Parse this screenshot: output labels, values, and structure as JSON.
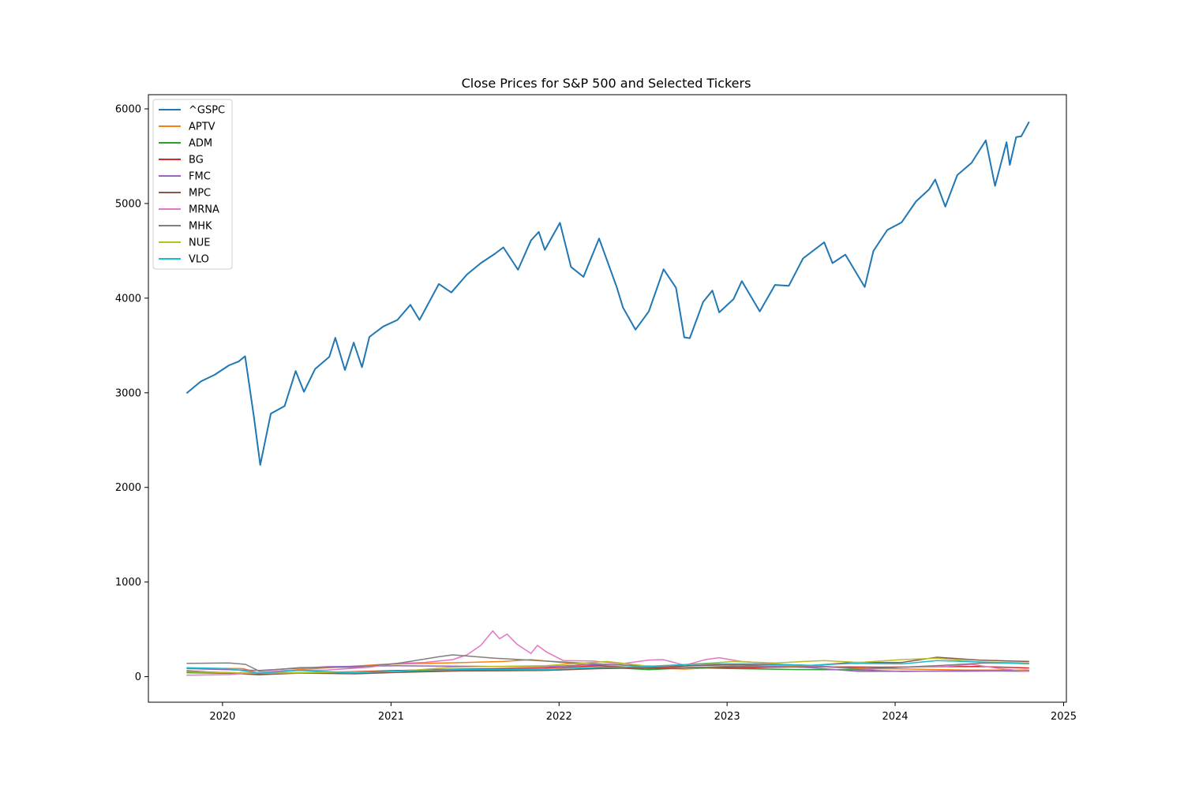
{
  "chart_data": {
    "type": "line",
    "title": "Close Prices for S&P 500 and Selected Tickers",
    "xlabel": "",
    "ylabel": "",
    "x_ticks": [
      "2020",
      "2021",
      "2022",
      "2023",
      "2024",
      "2025"
    ],
    "y_ticks": [
      "0",
      "1000",
      "2000",
      "3000",
      "4000",
      "5000",
      "6000"
    ],
    "xlim": [
      "2019-07-24",
      "2025-01-07"
    ],
    "ylim": [
      -270,
      6150
    ],
    "legend_position": "top-left",
    "grid": false,
    "series": [
      {
        "name": "^GSPC",
        "color": "#1f77b4",
        "points": [
          [
            "2019-10-15",
            2995
          ],
          [
            "2019-11-15",
            3120
          ],
          [
            "2019-12-15",
            3190
          ],
          [
            "2020-01-15",
            3290
          ],
          [
            "2020-02-05",
            3330
          ],
          [
            "2020-02-19",
            3386
          ],
          [
            "2020-03-09",
            2750
          ],
          [
            "2020-03-23",
            2237
          ],
          [
            "2020-04-15",
            2780
          ],
          [
            "2020-05-15",
            2860
          ],
          [
            "2020-06-08",
            3230
          ],
          [
            "2020-06-26",
            3010
          ],
          [
            "2020-07-20",
            3250
          ],
          [
            "2020-08-20",
            3380
          ],
          [
            "2020-09-02",
            3580
          ],
          [
            "2020-09-23",
            3240
          ],
          [
            "2020-10-12",
            3530
          ],
          [
            "2020-10-30",
            3270
          ],
          [
            "2020-11-15",
            3590
          ],
          [
            "2020-12-15",
            3700
          ],
          [
            "2021-01-15",
            3770
          ],
          [
            "2021-02-12",
            3930
          ],
          [
            "2021-03-04",
            3770
          ],
          [
            "2021-04-15",
            4150
          ],
          [
            "2021-05-12",
            4060
          ],
          [
            "2021-06-15",
            4250
          ],
          [
            "2021-07-15",
            4370
          ],
          [
            "2021-08-15",
            4470
          ],
          [
            "2021-09-02",
            4537
          ],
          [
            "2021-10-04",
            4300
          ],
          [
            "2021-11-01",
            4610
          ],
          [
            "2021-11-18",
            4700
          ],
          [
            "2021-12-01",
            4510
          ],
          [
            "2022-01-03",
            4796
          ],
          [
            "2022-01-27",
            4330
          ],
          [
            "2022-02-23",
            4225
          ],
          [
            "2022-03-29",
            4630
          ],
          [
            "2022-05-06",
            4120
          ],
          [
            "2022-05-20",
            3900
          ],
          [
            "2022-06-16",
            3667
          ],
          [
            "2022-07-15",
            3860
          ],
          [
            "2022-08-16",
            4305
          ],
          [
            "2022-09-12",
            4110
          ],
          [
            "2022-09-30",
            3585
          ],
          [
            "2022-10-12",
            3577
          ],
          [
            "2022-11-10",
            3960
          ],
          [
            "2022-11-30",
            4080
          ],
          [
            "2022-12-15",
            3850
          ],
          [
            "2023-01-15",
            3990
          ],
          [
            "2023-02-02",
            4180
          ],
          [
            "2023-03-13",
            3860
          ],
          [
            "2023-04-15",
            4140
          ],
          [
            "2023-05-15",
            4130
          ],
          [
            "2023-06-15",
            4420
          ],
          [
            "2023-07-31",
            4590
          ],
          [
            "2023-08-18",
            4370
          ],
          [
            "2023-09-15",
            4460
          ],
          [
            "2023-10-27",
            4117
          ],
          [
            "2023-11-15",
            4500
          ],
          [
            "2023-12-15",
            4720
          ],
          [
            "2024-01-15",
            4800
          ],
          [
            "2024-02-15",
            5020
          ],
          [
            "2024-03-15",
            5150
          ],
          [
            "2024-03-28",
            5254
          ],
          [
            "2024-04-19",
            4967
          ],
          [
            "2024-05-15",
            5300
          ],
          [
            "2024-06-15",
            5430
          ],
          [
            "2024-07-16",
            5667
          ],
          [
            "2024-08-05",
            5186
          ],
          [
            "2024-08-30",
            5648
          ],
          [
            "2024-09-06",
            5408
          ],
          [
            "2024-09-20",
            5702
          ],
          [
            "2024-10-01",
            5710
          ],
          [
            "2024-10-18",
            5864
          ]
        ]
      },
      {
        "name": "APTV",
        "color": "#ff7f0e",
        "points": [
          [
            "2019-10-15",
            88
          ],
          [
            "2020-02-15",
            85
          ],
          [
            "2020-03-20",
            35
          ],
          [
            "2020-06-15",
            75
          ],
          [
            "2020-12-15",
            130
          ],
          [
            "2021-06-15",
            150
          ],
          [
            "2021-09-01",
            160
          ],
          [
            "2021-11-01",
            180
          ],
          [
            "2022-03-01",
            125
          ],
          [
            "2022-07-01",
            95
          ],
          [
            "2022-10-01",
            80
          ],
          [
            "2023-01-15",
            105
          ],
          [
            "2023-04-01",
            110
          ],
          [
            "2023-07-31",
            105
          ],
          [
            "2023-11-01",
            85
          ],
          [
            "2024-02-01",
            80
          ],
          [
            "2024-06-01",
            70
          ],
          [
            "2024-10-18",
            70
          ]
        ]
      },
      {
        "name": "ADM",
        "color": "#2ca02c",
        "points": [
          [
            "2019-10-15",
            42
          ],
          [
            "2020-03-20",
            31
          ],
          [
            "2020-08-15",
            45
          ],
          [
            "2021-01-15",
            50
          ],
          [
            "2021-06-01",
            65
          ],
          [
            "2021-12-01",
            68
          ],
          [
            "2022-03-01",
            85
          ],
          [
            "2022-04-20",
            98
          ],
          [
            "2022-07-15",
            74
          ],
          [
            "2022-10-15",
            95
          ],
          [
            "2023-01-15",
            85
          ],
          [
            "2023-06-01",
            75
          ],
          [
            "2023-10-01",
            73
          ],
          [
            "2024-01-15",
            55
          ],
          [
            "2024-06-01",
            62
          ],
          [
            "2024-10-18",
            58
          ]
        ]
      },
      {
        "name": "BG",
        "color": "#d62728",
        "points": [
          [
            "2019-10-15",
            54
          ],
          [
            "2020-03-20",
            34
          ],
          [
            "2020-08-15",
            45
          ],
          [
            "2021-01-15",
            65
          ],
          [
            "2021-06-01",
            80
          ],
          [
            "2021-12-01",
            90
          ],
          [
            "2022-04-01",
            115
          ],
          [
            "2022-07-15",
            88
          ],
          [
            "2022-11-01",
            100
          ],
          [
            "2023-03-01",
            95
          ],
          [
            "2023-07-01",
            105
          ],
          [
            "2023-12-01",
            100
          ],
          [
            "2024-04-01",
            105
          ],
          [
            "2024-07-01",
            108
          ],
          [
            "2024-10-18",
            92
          ]
        ]
      },
      {
        "name": "FMC",
        "color": "#9467bd",
        "points": [
          [
            "2019-10-15",
            85
          ],
          [
            "2020-03-20",
            65
          ],
          [
            "2020-08-15",
            105
          ],
          [
            "2021-01-15",
            115
          ],
          [
            "2021-06-01",
            110
          ],
          [
            "2021-12-01",
            105
          ],
          [
            "2022-04-01",
            130
          ],
          [
            "2022-08-01",
            110
          ],
          [
            "2023-01-15",
            125
          ],
          [
            "2023-07-01",
            95
          ],
          [
            "2023-10-15",
            55
          ],
          [
            "2024-02-01",
            58
          ],
          [
            "2024-06-01",
            58
          ],
          [
            "2024-10-18",
            65
          ]
        ]
      },
      {
        "name": "MPC",
        "color": "#8c564b",
        "points": [
          [
            "2019-10-15",
            63
          ],
          [
            "2020-03-20",
            20
          ],
          [
            "2020-06-15",
            38
          ],
          [
            "2020-10-15",
            30
          ],
          [
            "2021-01-15",
            45
          ],
          [
            "2021-06-01",
            60
          ],
          [
            "2021-12-01",
            65
          ],
          [
            "2022-04-01",
            85
          ],
          [
            "2022-07-01",
            92
          ],
          [
            "2022-11-01",
            120
          ],
          [
            "2023-03-01",
            130
          ],
          [
            "2023-07-01",
            118
          ],
          [
            "2023-10-01",
            150
          ],
          [
            "2024-01-15",
            150
          ],
          [
            "2024-04-01",
            205
          ],
          [
            "2024-07-01",
            175
          ],
          [
            "2024-10-18",
            160
          ]
        ]
      },
      {
        "name": "MRNA",
        "color": "#e377c2",
        "points": [
          [
            "2019-10-15",
            15
          ],
          [
            "2020-01-15",
            22
          ],
          [
            "2020-05-15",
            65
          ],
          [
            "2020-08-15",
            70
          ],
          [
            "2020-11-15",
            100
          ],
          [
            "2021-01-15",
            140
          ],
          [
            "2021-03-15",
            150
          ],
          [
            "2021-05-15",
            180
          ],
          [
            "2021-06-15",
            230
          ],
          [
            "2021-07-15",
            330
          ],
          [
            "2021-08-10",
            484
          ],
          [
            "2021-08-25",
            400
          ],
          [
            "2021-09-10",
            450
          ],
          [
            "2021-10-01",
            345
          ],
          [
            "2021-10-15",
            300
          ],
          [
            "2021-11-01",
            245
          ],
          [
            "2021-11-15",
            330
          ],
          [
            "2021-12-05",
            260
          ],
          [
            "2022-01-10",
            170
          ],
          [
            "2022-03-15",
            165
          ],
          [
            "2022-05-15",
            135
          ],
          [
            "2022-07-15",
            175
          ],
          [
            "2022-08-15",
            180
          ],
          [
            "2022-10-01",
            120
          ],
          [
            "2022-11-15",
            180
          ],
          [
            "2022-12-15",
            200
          ],
          [
            "2023-02-01",
            160
          ],
          [
            "2023-05-01",
            130
          ],
          [
            "2023-08-01",
            110
          ],
          [
            "2023-11-01",
            75
          ],
          [
            "2024-01-15",
            100
          ],
          [
            "2024-04-15",
            105
          ],
          [
            "2024-06-15",
            130
          ],
          [
            "2024-08-15",
            85
          ],
          [
            "2024-10-18",
            55
          ]
        ]
      },
      {
        "name": "MHK",
        "color": "#7f7f7f",
        "points": [
          [
            "2019-10-15",
            140
          ],
          [
            "2020-01-15",
            145
          ],
          [
            "2020-02-20",
            130
          ],
          [
            "2020-03-20",
            60
          ],
          [
            "2020-06-15",
            95
          ],
          [
            "2020-10-15",
            100
          ],
          [
            "2021-01-15",
            140
          ],
          [
            "2021-04-15",
            210
          ],
          [
            "2021-05-15",
            230
          ],
          [
            "2021-08-15",
            195
          ],
          [
            "2021-11-15",
            170
          ],
          [
            "2022-02-15",
            145
          ],
          [
            "2022-06-15",
            115
          ],
          [
            "2022-10-01",
            95
          ],
          [
            "2023-01-15",
            110
          ],
          [
            "2023-04-01",
            100
          ],
          [
            "2023-07-31",
            105
          ],
          [
            "2023-10-15",
            80
          ],
          [
            "2024-01-15",
            100
          ],
          [
            "2024-04-15",
            120
          ],
          [
            "2024-07-15",
            145
          ],
          [
            "2024-10-18",
            140
          ]
        ]
      },
      {
        "name": "NUE",
        "color": "#bcbd22",
        "points": [
          [
            "2019-10-15",
            52
          ],
          [
            "2020-03-20",
            35
          ],
          [
            "2020-08-15",
            45
          ],
          [
            "2021-01-15",
            55
          ],
          [
            "2021-05-15",
            100
          ],
          [
            "2021-09-15",
            110
          ],
          [
            "2021-12-01",
            115
          ],
          [
            "2022-04-15",
            160
          ],
          [
            "2022-07-15",
            110
          ],
          [
            "2022-10-15",
            130
          ],
          [
            "2023-01-15",
            160
          ],
          [
            "2023-04-15",
            145
          ],
          [
            "2023-07-31",
            170
          ],
          [
            "2023-10-15",
            150
          ],
          [
            "2024-01-15",
            180
          ],
          [
            "2024-04-01",
            195
          ],
          [
            "2024-07-01",
            155
          ],
          [
            "2024-10-18",
            145
          ]
        ]
      },
      {
        "name": "VLO",
        "color": "#17becf",
        "points": [
          [
            "2019-10-15",
            95
          ],
          [
            "2020-01-15",
            85
          ],
          [
            "2020-03-20",
            35
          ],
          [
            "2020-06-15",
            65
          ],
          [
            "2020-10-15",
            40
          ],
          [
            "2021-01-15",
            60
          ],
          [
            "2021-06-01",
            75
          ],
          [
            "2021-12-01",
            75
          ],
          [
            "2022-04-01",
            100
          ],
          [
            "2022-07-01",
            105
          ],
          [
            "2022-11-01",
            135
          ],
          [
            "2023-03-01",
            135
          ],
          [
            "2023-07-01",
            120
          ],
          [
            "2023-10-01",
            140
          ],
          [
            "2024-01-15",
            135
          ],
          [
            "2024-04-01",
            170
          ],
          [
            "2024-07-01",
            155
          ],
          [
            "2024-10-18",
            135
          ]
        ]
      }
    ]
  }
}
